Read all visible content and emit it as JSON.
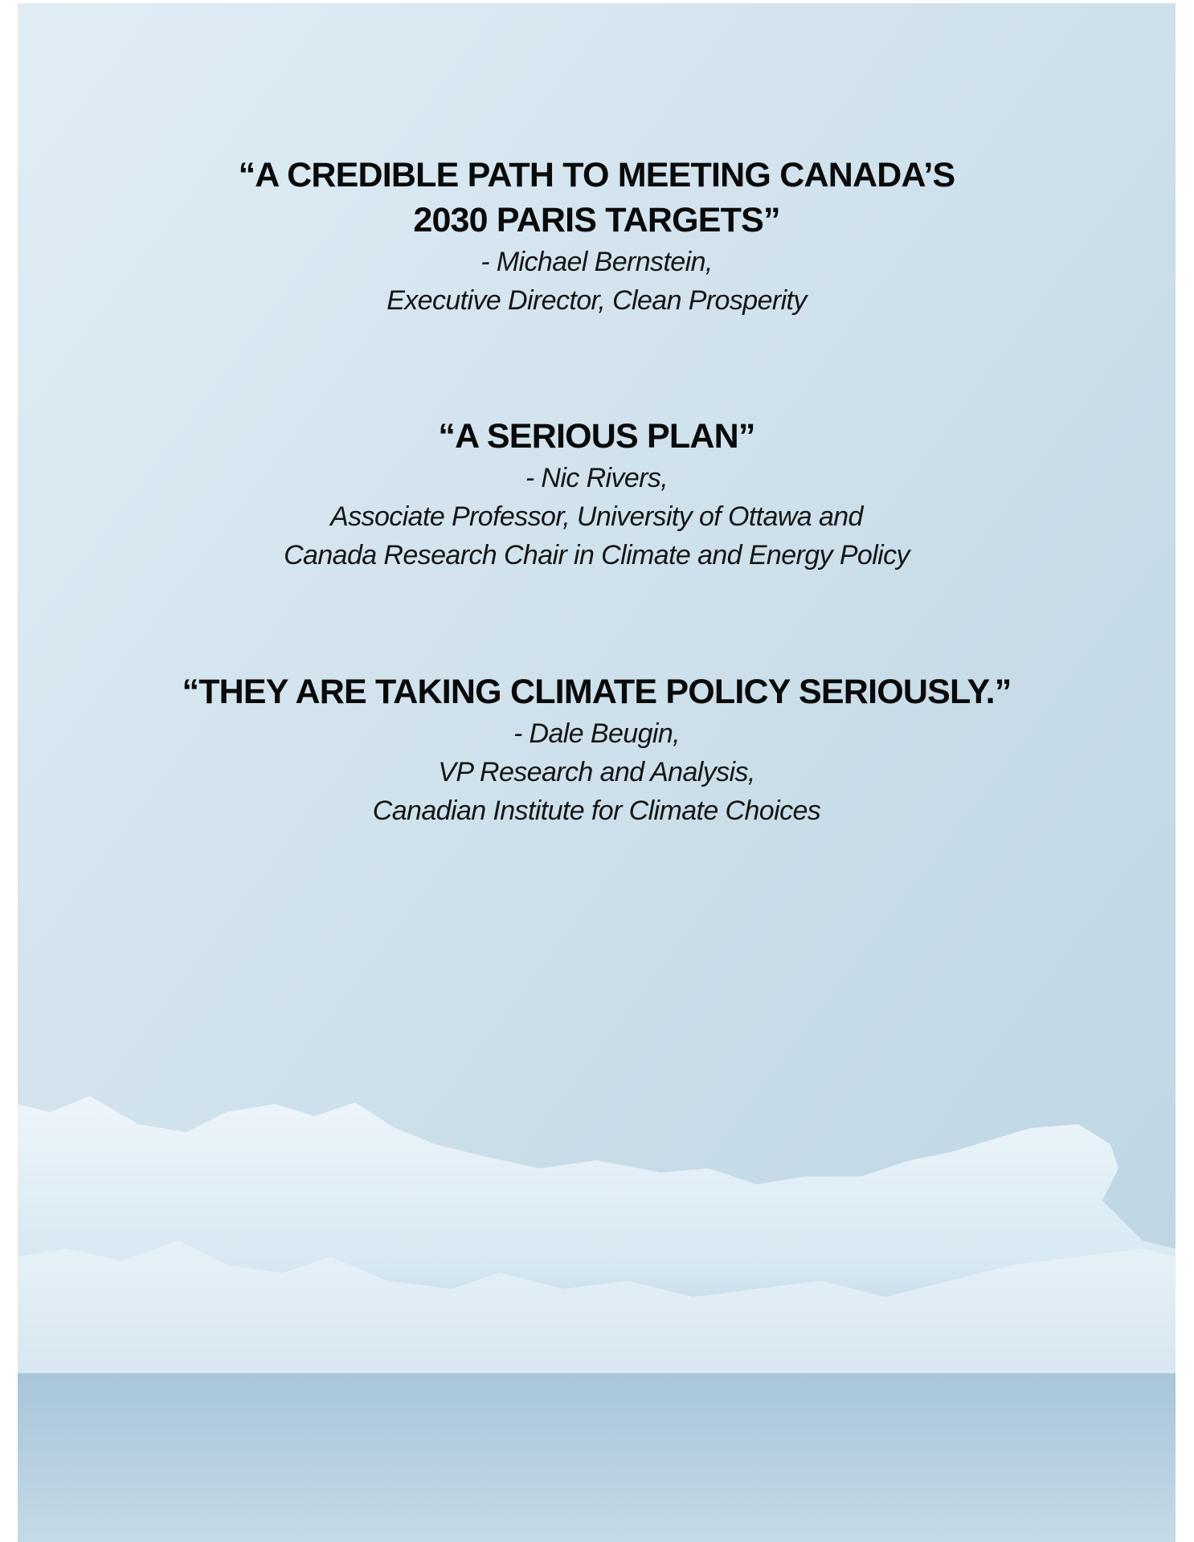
{
  "quotes": [
    {
      "quote": [
        "“A CREDIBLE PATH TO MEETING CANADA’S",
        "2030 PARIS TARGETS”"
      ],
      "attribution": [
        "- Michael Bernstein,",
        "Executive Director, Clean Prosperity"
      ]
    },
    {
      "quote": [
        "“A SERIOUS PLAN”"
      ],
      "attribution": [
        "- Nic Rivers,",
        "Associate Professor, University of Ottawa and",
        "Canada Research Chair in Climate and Energy Policy"
      ]
    },
    {
      "quote": [
        "“THEY ARE TAKING CLIMATE POLICY SERIOUSLY.”"
      ],
      "attribution": [
        "- Dale Beugin,",
        "VP Research and Analysis,",
        "Canadian Institute for Climate Choices"
      ]
    }
  ]
}
